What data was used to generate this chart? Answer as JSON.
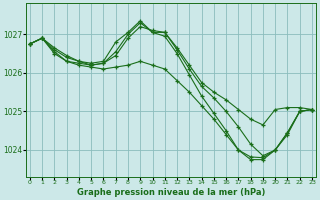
{
  "title": "Graphe pression niveau de la mer (hPa)",
  "background_color": "#cce8e8",
  "line_color": "#1a6e1a",
  "grid_color": "#8bbcbc",
  "ylim": [
    1023.3,
    1027.8
  ],
  "xlim": [
    -0.3,
    23.3
  ],
  "yticks": [
    1024,
    1025,
    1026,
    1027
  ],
  "xticks": [
    0,
    1,
    2,
    3,
    4,
    5,
    6,
    7,
    8,
    9,
    10,
    11,
    12,
    13,
    14,
    15,
    16,
    17,
    18,
    19,
    20,
    21,
    22,
    23
  ],
  "series": [
    {
      "x": [
        0,
        1,
        2,
        3,
        4,
        5,
        6,
        7,
        8,
        9,
        10,
        11,
        12,
        13,
        14,
        15,
        16,
        17,
        18,
        19,
        20,
        21,
        22,
        23
      ],
      "y": [
        1026.75,
        1026.9,
        1026.65,
        1026.45,
        1026.3,
        1026.25,
        1026.3,
        1026.8,
        1027.05,
        1027.35,
        1027.05,
        1027.05,
        1026.65,
        1026.2,
        1025.75,
        1025.5,
        1025.3,
        1025.05,
        1024.8,
        1024.65,
        1025.05,
        1025.1,
        1025.1,
        1025.05
      ]
    },
    {
      "x": [
        0,
        1,
        2,
        3,
        4,
        5,
        6,
        7,
        8,
        9,
        10,
        11,
        12,
        13,
        14,
        15,
        16,
        17,
        18,
        19,
        20,
        21,
        22,
        23
      ],
      "y": [
        1026.75,
        1026.9,
        1026.6,
        1026.4,
        1026.3,
        1026.2,
        1026.25,
        1026.45,
        1026.9,
        1027.2,
        1027.1,
        1027.05,
        1026.6,
        1026.1,
        1025.65,
        1025.35,
        1025.0,
        1024.6,
        1024.15,
        1023.85,
        1024.0,
        1024.4,
        1025.0,
        1025.05
      ]
    },
    {
      "x": [
        0,
        1,
        2,
        3,
        4,
        5,
        6,
        7,
        8,
        9,
        10,
        11,
        12,
        13,
        14,
        15,
        16,
        17,
        18,
        19,
        20,
        21,
        22,
        23
      ],
      "y": [
        1026.75,
        1026.9,
        1026.55,
        1026.3,
        1026.25,
        1026.2,
        1026.25,
        1026.55,
        1027.0,
        1027.3,
        1027.05,
        1026.95,
        1026.5,
        1025.95,
        1025.4,
        1024.95,
        1024.5,
        1024.0,
        1023.82,
        1023.8,
        1024.0,
        1024.45,
        1025.0,
        1025.05
      ]
    },
    {
      "x": [
        0,
        1,
        2,
        3,
        4,
        5,
        6,
        7,
        8,
        9,
        10,
        11,
        12,
        13,
        14,
        15,
        16,
        17,
        18,
        19,
        20,
        21,
        22,
        23
      ],
      "y": [
        1026.75,
        1026.9,
        1026.5,
        1026.3,
        1026.2,
        1026.15,
        1026.1,
        1026.15,
        1026.2,
        1026.3,
        1026.2,
        1026.1,
        1025.8,
        1025.5,
        1025.15,
        1024.8,
        1024.4,
        1024.0,
        1023.75,
        1023.75,
        1024.0,
        1024.45,
        1025.0,
        1025.05
      ]
    }
  ]
}
